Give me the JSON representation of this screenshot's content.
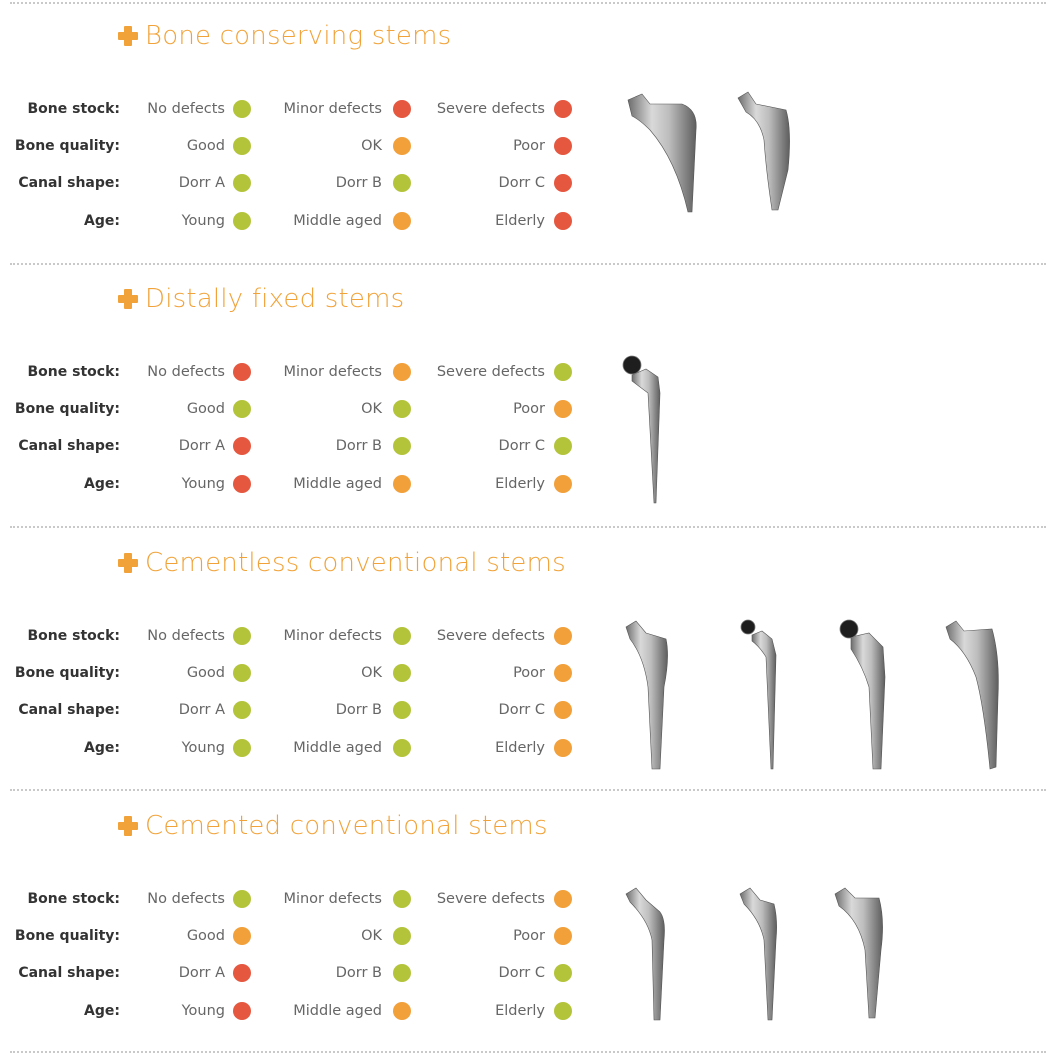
{
  "status_colors": {
    "green": "#b3c43b",
    "orange": "#f2a03a",
    "red": "#e5573f"
  },
  "row_labels": [
    "Bone stock:",
    "Bone quality:",
    "Canal shape:",
    "Age:"
  ],
  "options": [
    [
      "No defects",
      "Minor defects",
      "Severe defects"
    ],
    [
      "Good",
      "OK",
      "Poor"
    ],
    [
      "Dorr A",
      "Dorr B",
      "Dorr C"
    ],
    [
      "Young",
      "Middle aged",
      "Elderly"
    ]
  ],
  "sections": [
    {
      "title": "Bone conserving stems",
      "ratings": [
        [
          "green",
          "red",
          "red"
        ],
        [
          "green",
          "orange",
          "red"
        ],
        [
          "green",
          "green",
          "red"
        ],
        [
          "green",
          "orange",
          "red"
        ]
      ],
      "stems": [
        "short-stem-porous",
        "short-stem-curved"
      ]
    },
    {
      "title": "Distally fixed stems",
      "ratings": [
        [
          "red",
          "orange",
          "green"
        ],
        [
          "green",
          "green",
          "orange"
        ],
        [
          "red",
          "green",
          "green"
        ],
        [
          "red",
          "orange",
          "orange"
        ]
      ],
      "stems": [
        "long-distal-stem"
      ]
    },
    {
      "title": "Cementless conventional stems",
      "ratings": [
        [
          "green",
          "green",
          "orange"
        ],
        [
          "green",
          "green",
          "orange"
        ],
        [
          "green",
          "green",
          "orange"
        ],
        [
          "green",
          "green",
          "orange"
        ]
      ],
      "stems": [
        "tapered-wedge-stem",
        "slim-stem-with-head",
        "fit-fill-stem-with-head",
        "textured-anatomic-stem"
      ]
    },
    {
      "title": "Cemented conventional stems",
      "ratings": [
        [
          "green",
          "green",
          "orange"
        ],
        [
          "orange",
          "green",
          "orange"
        ],
        [
          "red",
          "green",
          "green"
        ],
        [
          "red",
          "orange",
          "green"
        ]
      ],
      "stems": [
        "polished-collarless-stem",
        "polished-tapered-stem",
        "polished-wide-stem"
      ]
    }
  ]
}
